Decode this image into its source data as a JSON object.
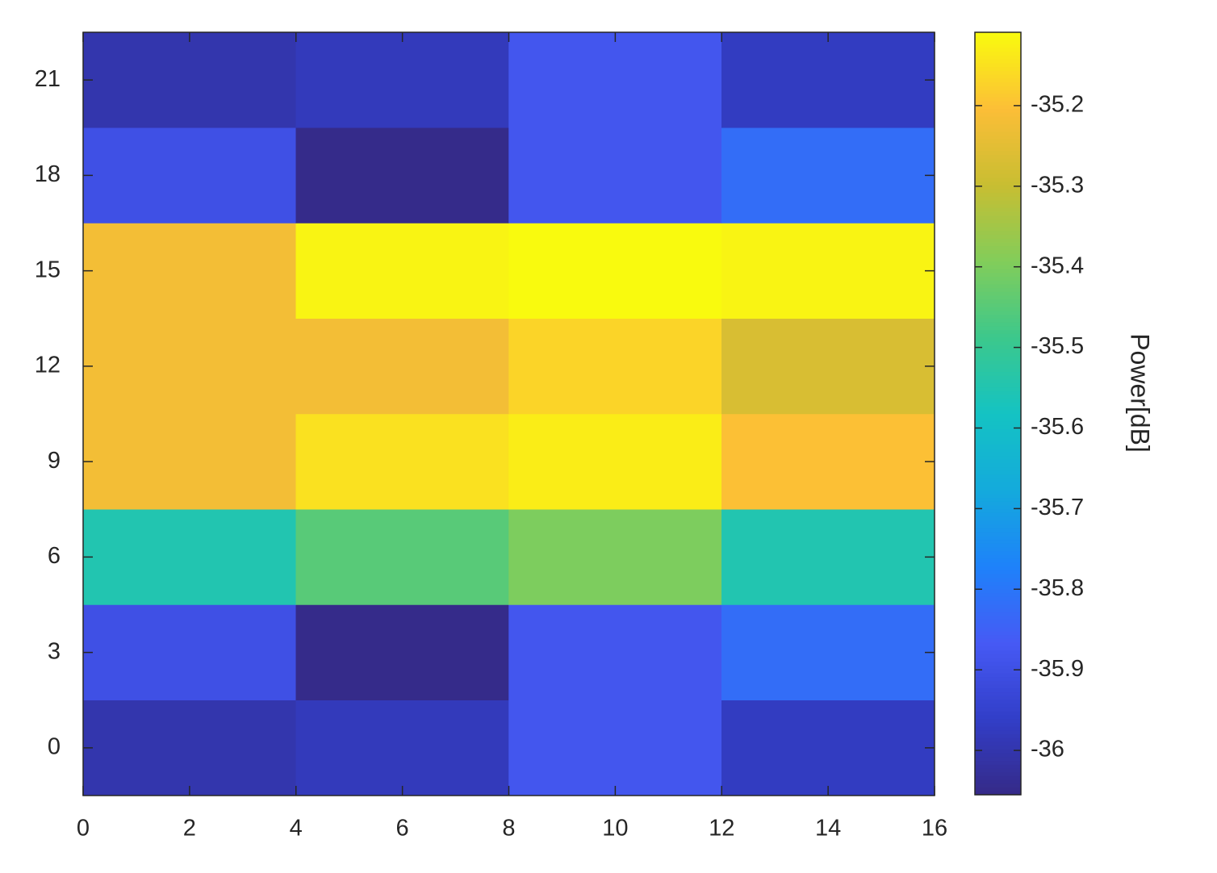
{
  "chart_data": {
    "type": "heatmap",
    "xbins": [
      0,
      4,
      8,
      12,
      16
    ],
    "y": [
      0,
      3,
      6,
      9,
      12,
      15,
      18,
      21
    ],
    "z": [
      [
        -36.0,
        -35.98,
        -35.88,
        -35.97
      ],
      [
        -35.9,
        -36.05,
        -35.88,
        -35.82
      ],
      [
        -35.55,
        -35.45,
        -35.4,
        -35.55
      ],
      [
        -35.22,
        -35.15,
        -35.13,
        -35.2
      ],
      [
        -35.22,
        -35.22,
        -35.17,
        -35.27
      ],
      [
        -35.22,
        -35.12,
        -35.11,
        -35.12
      ],
      [
        -35.9,
        -36.05,
        -35.88,
        -35.82
      ],
      [
        -36.0,
        -35.98,
        -35.88,
        -35.97
      ]
    ],
    "xlim": [
      0,
      16
    ],
    "xticks": [
      0,
      2,
      4,
      6,
      8,
      10,
      12,
      14,
      16
    ],
    "ylim": [
      -1.5,
      22.5
    ],
    "yticks": [
      0,
      3,
      6,
      9,
      12,
      15,
      18,
      21
    ],
    "colormap": "parula",
    "clim": [
      -36.055,
      -35.109
    ],
    "cticks": [
      -36,
      -35.9,
      -35.8,
      -35.7,
      -35.6,
      -35.5,
      -35.4,
      -35.3,
      -35.2
    ],
    "colorbar_label": "Power[dB]"
  }
}
